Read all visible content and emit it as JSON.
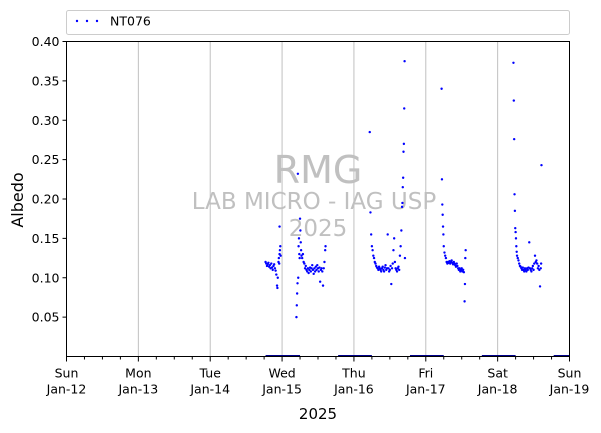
{
  "chart_data": {
    "type": "scatter",
    "title": "",
    "xlabel": "2025",
    "ylabel": "Albedo",
    "ylim": [
      0,
      0.4
    ],
    "yticks": [
      0.05,
      0.1,
      0.15,
      0.2,
      0.25,
      0.3,
      0.35,
      0.4
    ],
    "ytick_labels": [
      "0.05",
      "0.10",
      "0.15",
      "0.20",
      "0.25",
      "0.30",
      "0.35",
      "0.40"
    ],
    "xlim": [
      0,
      7
    ],
    "xticks": [
      {
        "x": 0,
        "day": "Sun",
        "date": "Jan-12"
      },
      {
        "x": 1,
        "day": "Mon",
        "date": "Jan-13"
      },
      {
        "x": 2,
        "day": "Tue",
        "date": "Jan-14"
      },
      {
        "x": 3,
        "day": "Wed",
        "date": "Jan-15"
      },
      {
        "x": 4,
        "day": "Thu",
        "date": "Jan-16"
      },
      {
        "x": 5,
        "day": "Fri",
        "date": "Jan-17"
      },
      {
        "x": 6,
        "day": "Sat",
        "date": "Jan-18"
      },
      {
        "x": 7,
        "day": "Sun",
        "date": "Jan-19"
      }
    ],
    "grid": "vertical",
    "legend": {
      "placement": "top-left, above plot",
      "entries": [
        "NT076"
      ]
    },
    "watermark": {
      "line1": "RMG",
      "line2": "LAB MICRO - IAG USP",
      "line3": "2025"
    },
    "series": [
      {
        "name": "NT076",
        "color": "#0000ff",
        "x_unit": "days since Jan-12 00:00",
        "points": [
          [
            2.77,
            0.12
          ],
          [
            2.78,
            0.118
          ],
          [
            2.79,
            0.115
          ],
          [
            2.8,
            0.117
          ],
          [
            2.81,
            0.119
          ],
          [
            2.82,
            0.114
          ],
          [
            2.83,
            0.116
          ],
          [
            2.84,
            0.112
          ],
          [
            2.85,
            0.118
          ],
          [
            2.86,
            0.113
          ],
          [
            2.87,
            0.11
          ],
          [
            2.88,
            0.115
          ],
          [
            2.89,
            0.117
          ],
          [
            2.9,
            0.112
          ],
          [
            2.91,
            0.109
          ],
          [
            2.92,
            0.104
          ],
          [
            2.93,
            0.09
          ],
          [
            2.935,
            0.087
          ],
          [
            2.94,
            0.1
          ],
          [
            2.95,
            0.12
          ],
          [
            2.955,
            0.125
          ],
          [
            2.96,
            0.118
          ],
          [
            2.965,
            0.13
          ],
          [
            2.97,
            0.135
          ],
          [
            2.975,
            0.14
          ],
          [
            2.98,
            0.128
          ],
          [
            2.965,
            0.165
          ],
          [
            3.2,
            0.05
          ],
          [
            3.205,
            0.065
          ],
          [
            3.21,
            0.08
          ],
          [
            3.215,
            0.093
          ],
          [
            3.22,
            0.232
          ],
          [
            3.225,
            0.1
          ],
          [
            3.23,
            0.14
          ],
          [
            3.235,
            0.15
          ],
          [
            3.24,
            0.13
          ],
          [
            3.245,
            0.125
          ],
          [
            3.25,
            0.175
          ],
          [
            3.255,
            0.16
          ],
          [
            3.26,
            0.145
          ],
          [
            3.265,
            0.135
          ],
          [
            3.27,
            0.128
          ],
          [
            3.28,
            0.125
          ],
          [
            3.29,
            0.13
          ],
          [
            3.3,
            0.12
          ],
          [
            3.31,
            0.118
          ],
          [
            3.32,
            0.112
          ],
          [
            3.33,
            0.115
          ],
          [
            3.34,
            0.11
          ],
          [
            3.35,
            0.108
          ],
          [
            3.36,
            0.112
          ],
          [
            3.37,
            0.106
          ],
          [
            3.38,
            0.11
          ],
          [
            3.39,
            0.113
          ],
          [
            3.4,
            0.108
          ],
          [
            3.41,
            0.112
          ],
          [
            3.42,
            0.116
          ],
          [
            3.43,
            0.11
          ],
          [
            3.44,
            0.105
          ],
          [
            3.45,
            0.112
          ],
          [
            3.46,
            0.108
          ],
          [
            3.47,
            0.114
          ],
          [
            3.48,
            0.11
          ],
          [
            3.49,
            0.116
          ],
          [
            3.5,
            0.112
          ],
          [
            3.51,
            0.108
          ],
          [
            3.52,
            0.113
          ],
          [
            3.53,
            0.095
          ],
          [
            3.54,
            0.11
          ],
          [
            3.55,
            0.112
          ],
          [
            3.56,
            0.108
          ],
          [
            3.57,
            0.09
          ],
          [
            3.58,
            0.112
          ],
          [
            3.59,
            0.12
          ],
          [
            3.6,
            0.135
          ],
          [
            3.605,
            0.14
          ],
          [
            4.22,
            0.285
          ],
          [
            4.23,
            0.183
          ],
          [
            4.24,
            0.155
          ],
          [
            4.25,
            0.14
          ],
          [
            4.26,
            0.135
          ],
          [
            4.27,
            0.128
          ],
          [
            4.28,
            0.125
          ],
          [
            4.29,
            0.12
          ],
          [
            4.3,
            0.118
          ],
          [
            4.31,
            0.115
          ],
          [
            4.32,
            0.113
          ],
          [
            4.33,
            0.112
          ],
          [
            4.34,
            0.11
          ],
          [
            4.35,
            0.114
          ],
          [
            4.36,
            0.112
          ],
          [
            4.37,
            0.11
          ],
          [
            4.38,
            0.108
          ],
          [
            4.39,
            0.112
          ],
          [
            4.4,
            0.114
          ],
          [
            4.41,
            0.11
          ],
          [
            4.42,
            0.108
          ],
          [
            4.43,
            0.113
          ],
          [
            4.44,
            0.116
          ],
          [
            4.45,
            0.11
          ],
          [
            4.46,
            0.112
          ],
          [
            4.47,
            0.155
          ],
          [
            4.48,
            0.112
          ],
          [
            4.49,
            0.108
          ],
          [
            4.5,
            0.11
          ],
          [
            4.51,
            0.115
          ],
          [
            4.52,
            0.092
          ],
          [
            4.53,
            0.112
          ],
          [
            4.54,
            0.118
          ],
          [
            4.55,
            0.135
          ],
          [
            4.56,
            0.15
          ],
          [
            4.57,
            0.12
          ],
          [
            4.58,
            0.112
          ],
          [
            4.59,
            0.11
          ],
          [
            4.6,
            0.108
          ],
          [
            4.61,
            0.112
          ],
          [
            4.62,
            0.114
          ],
          [
            4.63,
            0.11
          ],
          [
            4.64,
            0.128
          ],
          [
            4.65,
            0.14
          ],
          [
            4.66,
            0.16
          ],
          [
            4.67,
            0.19
          ],
          [
            4.675,
            0.195
          ],
          [
            4.68,
            0.215
          ],
          [
            4.685,
            0.227
          ],
          [
            4.69,
            0.26
          ],
          [
            4.695,
            0.27
          ],
          [
            4.7,
            0.315
          ],
          [
            4.705,
            0.375
          ],
          [
            4.71,
            0.125
          ],
          [
            5.22,
            0.34
          ],
          [
            5.225,
            0.225
          ],
          [
            5.23,
            0.193
          ],
          [
            5.235,
            0.18
          ],
          [
            5.24,
            0.165
          ],
          [
            5.245,
            0.155
          ],
          [
            5.25,
            0.14
          ],
          [
            5.26,
            0.132
          ],
          [
            5.27,
            0.128
          ],
          [
            5.28,
            0.125
          ],
          [
            5.29,
            0.12
          ],
          [
            5.3,
            0.118
          ],
          [
            5.31,
            0.12
          ],
          [
            5.32,
            0.119
          ],
          [
            5.33,
            0.121
          ],
          [
            5.34,
            0.118
          ],
          [
            5.35,
            0.12
          ],
          [
            5.36,
            0.122
          ],
          [
            5.37,
            0.119
          ],
          [
            5.38,
            0.117
          ],
          [
            5.39,
            0.12
          ],
          [
            5.4,
            0.118
          ],
          [
            5.41,
            0.116
          ],
          [
            5.42,
            0.114
          ],
          [
            5.43,
            0.118
          ],
          [
            5.44,
            0.115
          ],
          [
            5.45,
            0.112
          ],
          [
            5.46,
            0.11
          ],
          [
            5.47,
            0.112
          ],
          [
            5.48,
            0.108
          ],
          [
            5.49,
            0.11
          ],
          [
            5.5,
            0.112
          ],
          [
            5.51,
            0.108
          ],
          [
            5.52,
            0.11
          ],
          [
            5.53,
            0.107
          ],
          [
            5.54,
            0.07
          ],
          [
            5.545,
            0.092
          ],
          [
            5.55,
            0.125
          ],
          [
            5.555,
            0.135
          ],
          [
            6.22,
            0.373
          ],
          [
            6.225,
            0.325
          ],
          [
            6.23,
            0.276
          ],
          [
            6.235,
            0.206
          ],
          [
            6.24,
            0.185
          ],
          [
            6.245,
            0.163
          ],
          [
            6.25,
            0.158
          ],
          [
            6.255,
            0.15
          ],
          [
            6.26,
            0.14
          ],
          [
            6.265,
            0.133
          ],
          [
            6.27,
            0.128
          ],
          [
            6.28,
            0.125
          ],
          [
            6.29,
            0.122
          ],
          [
            6.3,
            0.118
          ],
          [
            6.31,
            0.115
          ],
          [
            6.32,
            0.114
          ],
          [
            6.33,
            0.112
          ],
          [
            6.34,
            0.11
          ],
          [
            6.35,
            0.113
          ],
          [
            6.36,
            0.11
          ],
          [
            6.37,
            0.108
          ],
          [
            6.38,
            0.112
          ],
          [
            6.39,
            0.11
          ],
          [
            6.4,
            0.108
          ],
          [
            6.41,
            0.112
          ],
          [
            6.42,
            0.11
          ],
          [
            6.43,
            0.113
          ],
          [
            6.44,
            0.145
          ],
          [
            6.45,
            0.112
          ],
          [
            6.46,
            0.11
          ],
          [
            6.47,
            0.108
          ],
          [
            6.48,
            0.112
          ],
          [
            6.49,
            0.115
          ],
          [
            6.5,
            0.11
          ],
          [
            6.51,
            0.118
          ],
          [
            6.52,
            0.128
          ],
          [
            6.53,
            0.12
          ],
          [
            6.54,
            0.122
          ],
          [
            6.55,
            0.118
          ],
          [
            6.56,
            0.112
          ],
          [
            6.57,
            0.115
          ],
          [
            6.58,
            0.11
          ],
          [
            6.59,
            0.089
          ],
          [
            6.6,
            0.112
          ],
          [
            6.605,
            0.118
          ],
          [
            6.61,
            0.243
          ]
        ]
      }
    ],
    "night_bars": [
      [
        2.77,
        3.25
      ],
      [
        3.78,
        4.25
      ],
      [
        4.78,
        5.25
      ],
      [
        5.78,
        6.25
      ],
      [
        6.78,
        7.0
      ]
    ]
  }
}
